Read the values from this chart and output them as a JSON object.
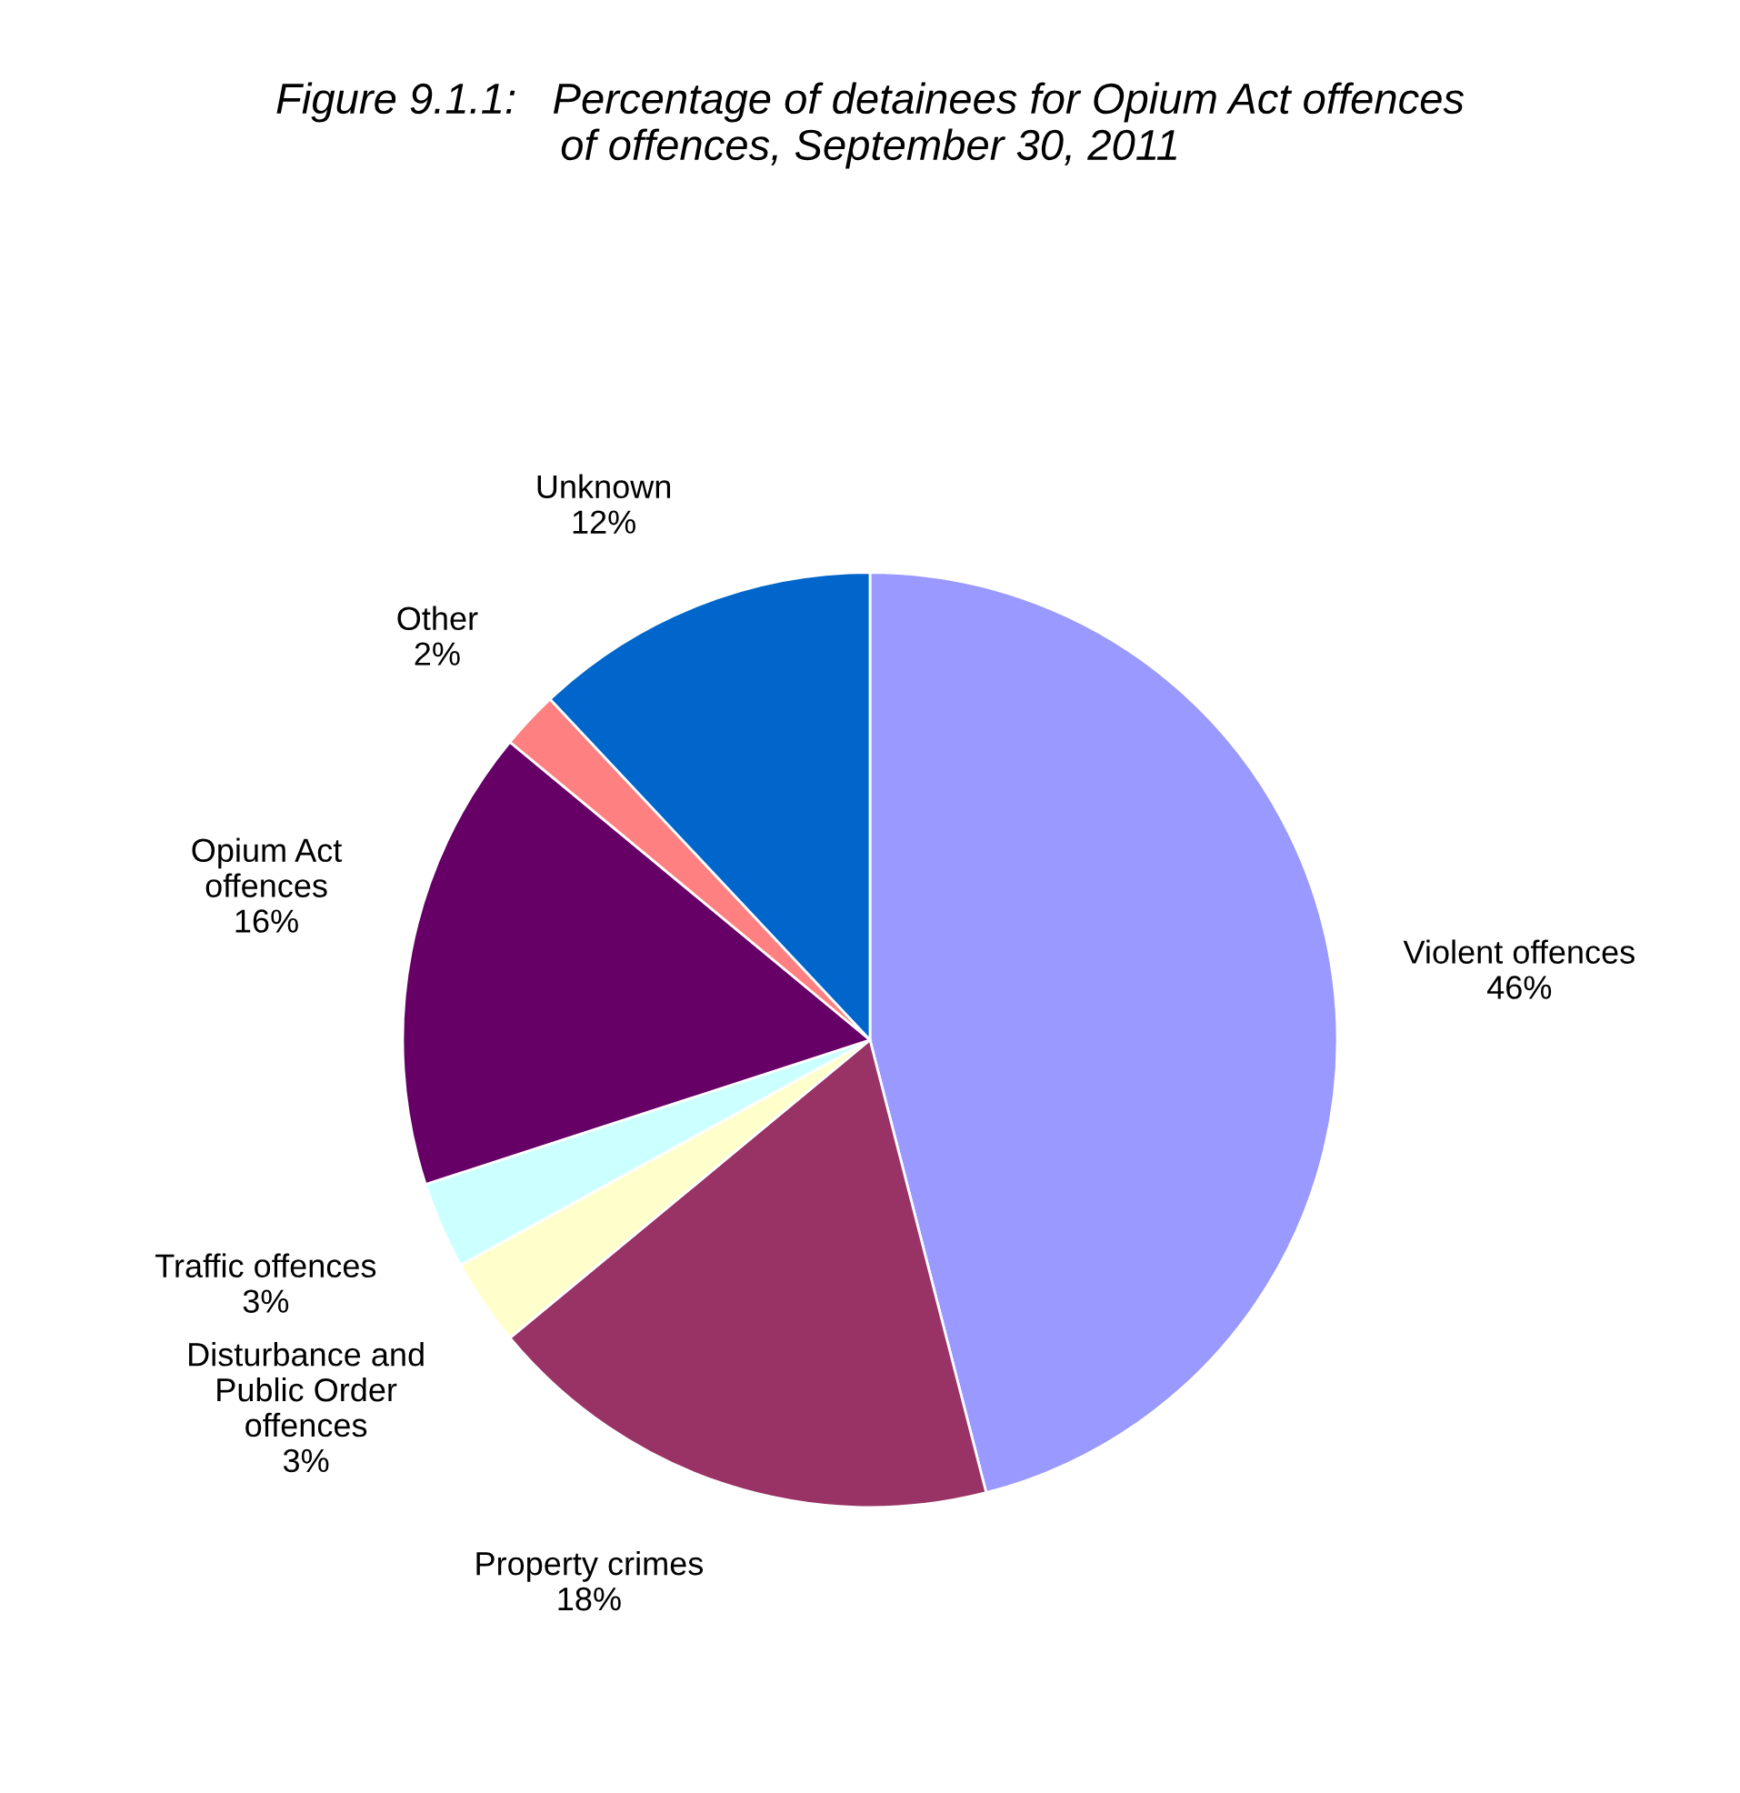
{
  "chart_data": {
    "type": "pie",
    "title": "Figure 9.1.1:   Percentage of detainees for Opium Act offences\nof offences, September 30, 2011",
    "categories": [
      "Violent offences",
      "Property crimes",
      "Disturbance and\nPublic Order\noffences",
      "Traffic offences",
      "Opium Act\noffences",
      "Other",
      "Unknown"
    ],
    "values": [
      46,
      18,
      3,
      3,
      16,
      2,
      12
    ],
    "value_labels": [
      "46%",
      "18%",
      "3%",
      "3%",
      "16%",
      "2%",
      "12%"
    ],
    "colors": [
      "#9999ff",
      "#993366",
      "#ffffcc",
      "#ccffff",
      "#660066",
      "#ff8080",
      "#0066cc"
    ]
  }
}
